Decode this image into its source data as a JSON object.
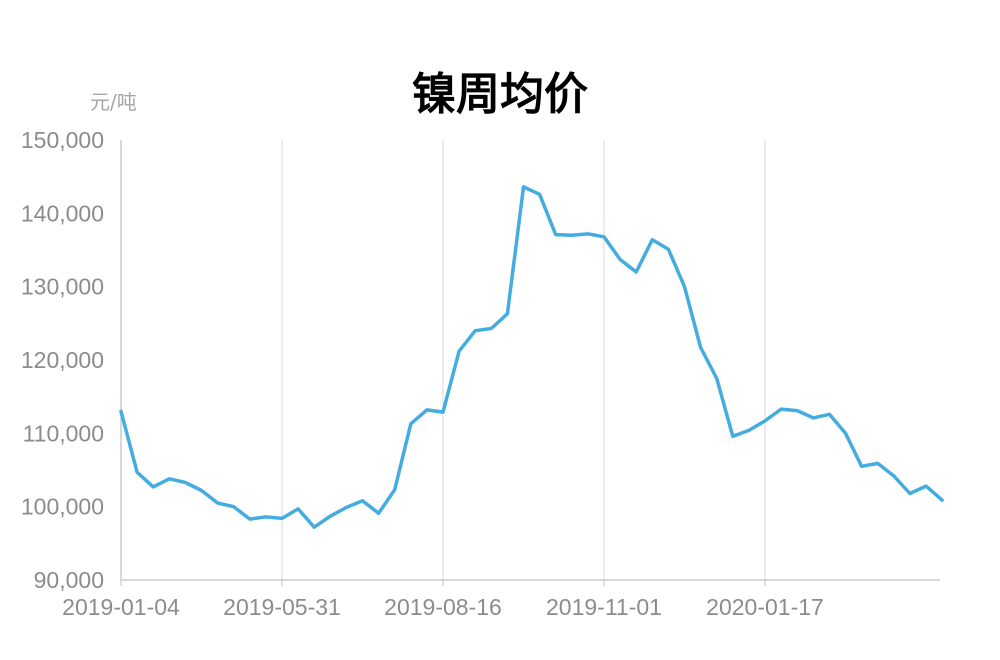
{
  "chart_data": {
    "type": "line",
    "title": "镍周均价",
    "ylabel": "元/吨",
    "xlabel": "",
    "ylim": [
      90000,
      150000
    ],
    "yticks": [
      "90,000",
      "100,000",
      "110,000",
      "120,000",
      "130,000",
      "140,000",
      "150,000"
    ],
    "xtick_labels": [
      "2019-01-04",
      "2019-05-31",
      "2019-08-16",
      "2019-11-01",
      "2020-01-17"
    ],
    "grid": "vertical",
    "colors": {
      "line": "#45ace0",
      "grid": "#d9d9d9",
      "axis": "#bfbfbf",
      "tick_text": "#8c8c8c"
    },
    "series": [
      {
        "values": [
          113000,
          104700,
          102700,
          103800,
          103300,
          102200,
          100500,
          100000,
          98300,
          98600,
          98400,
          99700,
          97200,
          98700,
          99900,
          100800,
          99100,
          102300,
          111300,
          113200,
          112900,
          121200,
          124000,
          124300,
          126300,
          143600,
          142600,
          137100,
          137000,
          137200,
          136800,
          133700,
          132000,
          136400,
          135100,
          130000,
          121700,
          117500,
          109600,
          110400,
          111700,
          113300,
          113100,
          112100,
          112600,
          110000,
          105500,
          105900,
          104200,
          101800,
          102800,
          100900
        ]
      }
    ]
  }
}
